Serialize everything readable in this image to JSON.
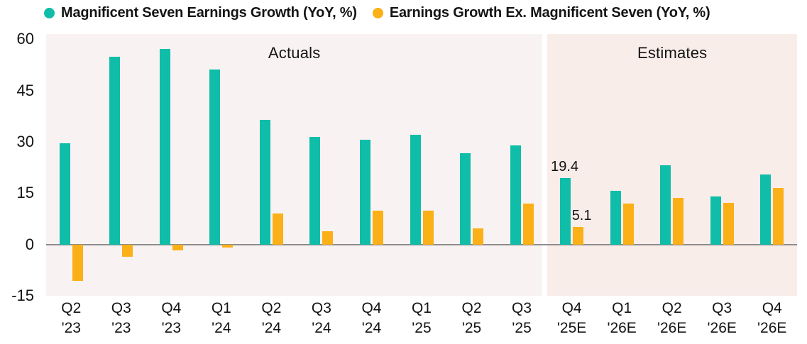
{
  "legend": {
    "series1_label": "Magnificent Seven Earnings Growth (YoY, %)",
    "series2_label": "Earnings Growth Ex. Magnificent Seven (YoY, %)"
  },
  "sections": {
    "left_label": "Actuals",
    "right_label": "Estimates"
  },
  "colors": {
    "mag7_teal": "#0fbda8",
    "ex_mag7_yellow": "#fbb017",
    "actuals_background": "#f8f3f2",
    "estimates_background": "#f9edea",
    "axis_line": "#8c8c8c",
    "text": "#141414"
  },
  "chart_data": {
    "type": "bar",
    "title": "",
    "xlabel": "",
    "ylabel": "",
    "categories": [
      "Q2 '23",
      "Q3 '23",
      "Q4 '23",
      "Q1 '24",
      "Q2 '24",
      "Q3 '24",
      "Q4 '24",
      "Q1 '25",
      "Q2 '25",
      "Q3 '25",
      "Q4 '25E",
      "Q1 '26E",
      "Q2 '26E",
      "Q3 '26E",
      "Q4 '26E"
    ],
    "series": [
      {
        "name": "Magnificent Seven Earnings Growth (YoY, %)",
        "color": "#0fbda8",
        "values": [
          29.5,
          54.8,
          57.1,
          51.2,
          36.4,
          31.4,
          30.6,
          32.0,
          26.6,
          29.0,
          19.4,
          15.6,
          23.2,
          14.1,
          20.4
        ]
      },
      {
        "name": "Earnings Growth Ex. Magnificent Seven (YoY, %)",
        "color": "#fbb017",
        "values": [
          -10.7,
          -3.7,
          -1.8,
          -1.0,
          9.1,
          3.9,
          9.8,
          9.8,
          4.6,
          12.0,
          5.1,
          11.9,
          13.6,
          12.2,
          16.5
        ]
      }
    ],
    "annotations": [
      {
        "text": "19.4",
        "category": "Q4 '25E",
        "series": 0,
        "dx": -1
      },
      {
        "text": "5.1",
        "category": "Q4 '25E",
        "series": 1,
        "dx": 5
      }
    ],
    "yticks": [
      60,
      45,
      30,
      15,
      0,
      -15
    ],
    "ylim": [
      -15,
      61.5
    ],
    "grid": false,
    "legend_position": "top",
    "region_labels": [
      {
        "label": "Actuals",
        "from_category": "Q2 '23",
        "to_category": "Q3 '25"
      },
      {
        "label": "Estimates",
        "from_category": "Q4 '25E",
        "to_category": "Q4 '26E"
      }
    ]
  }
}
